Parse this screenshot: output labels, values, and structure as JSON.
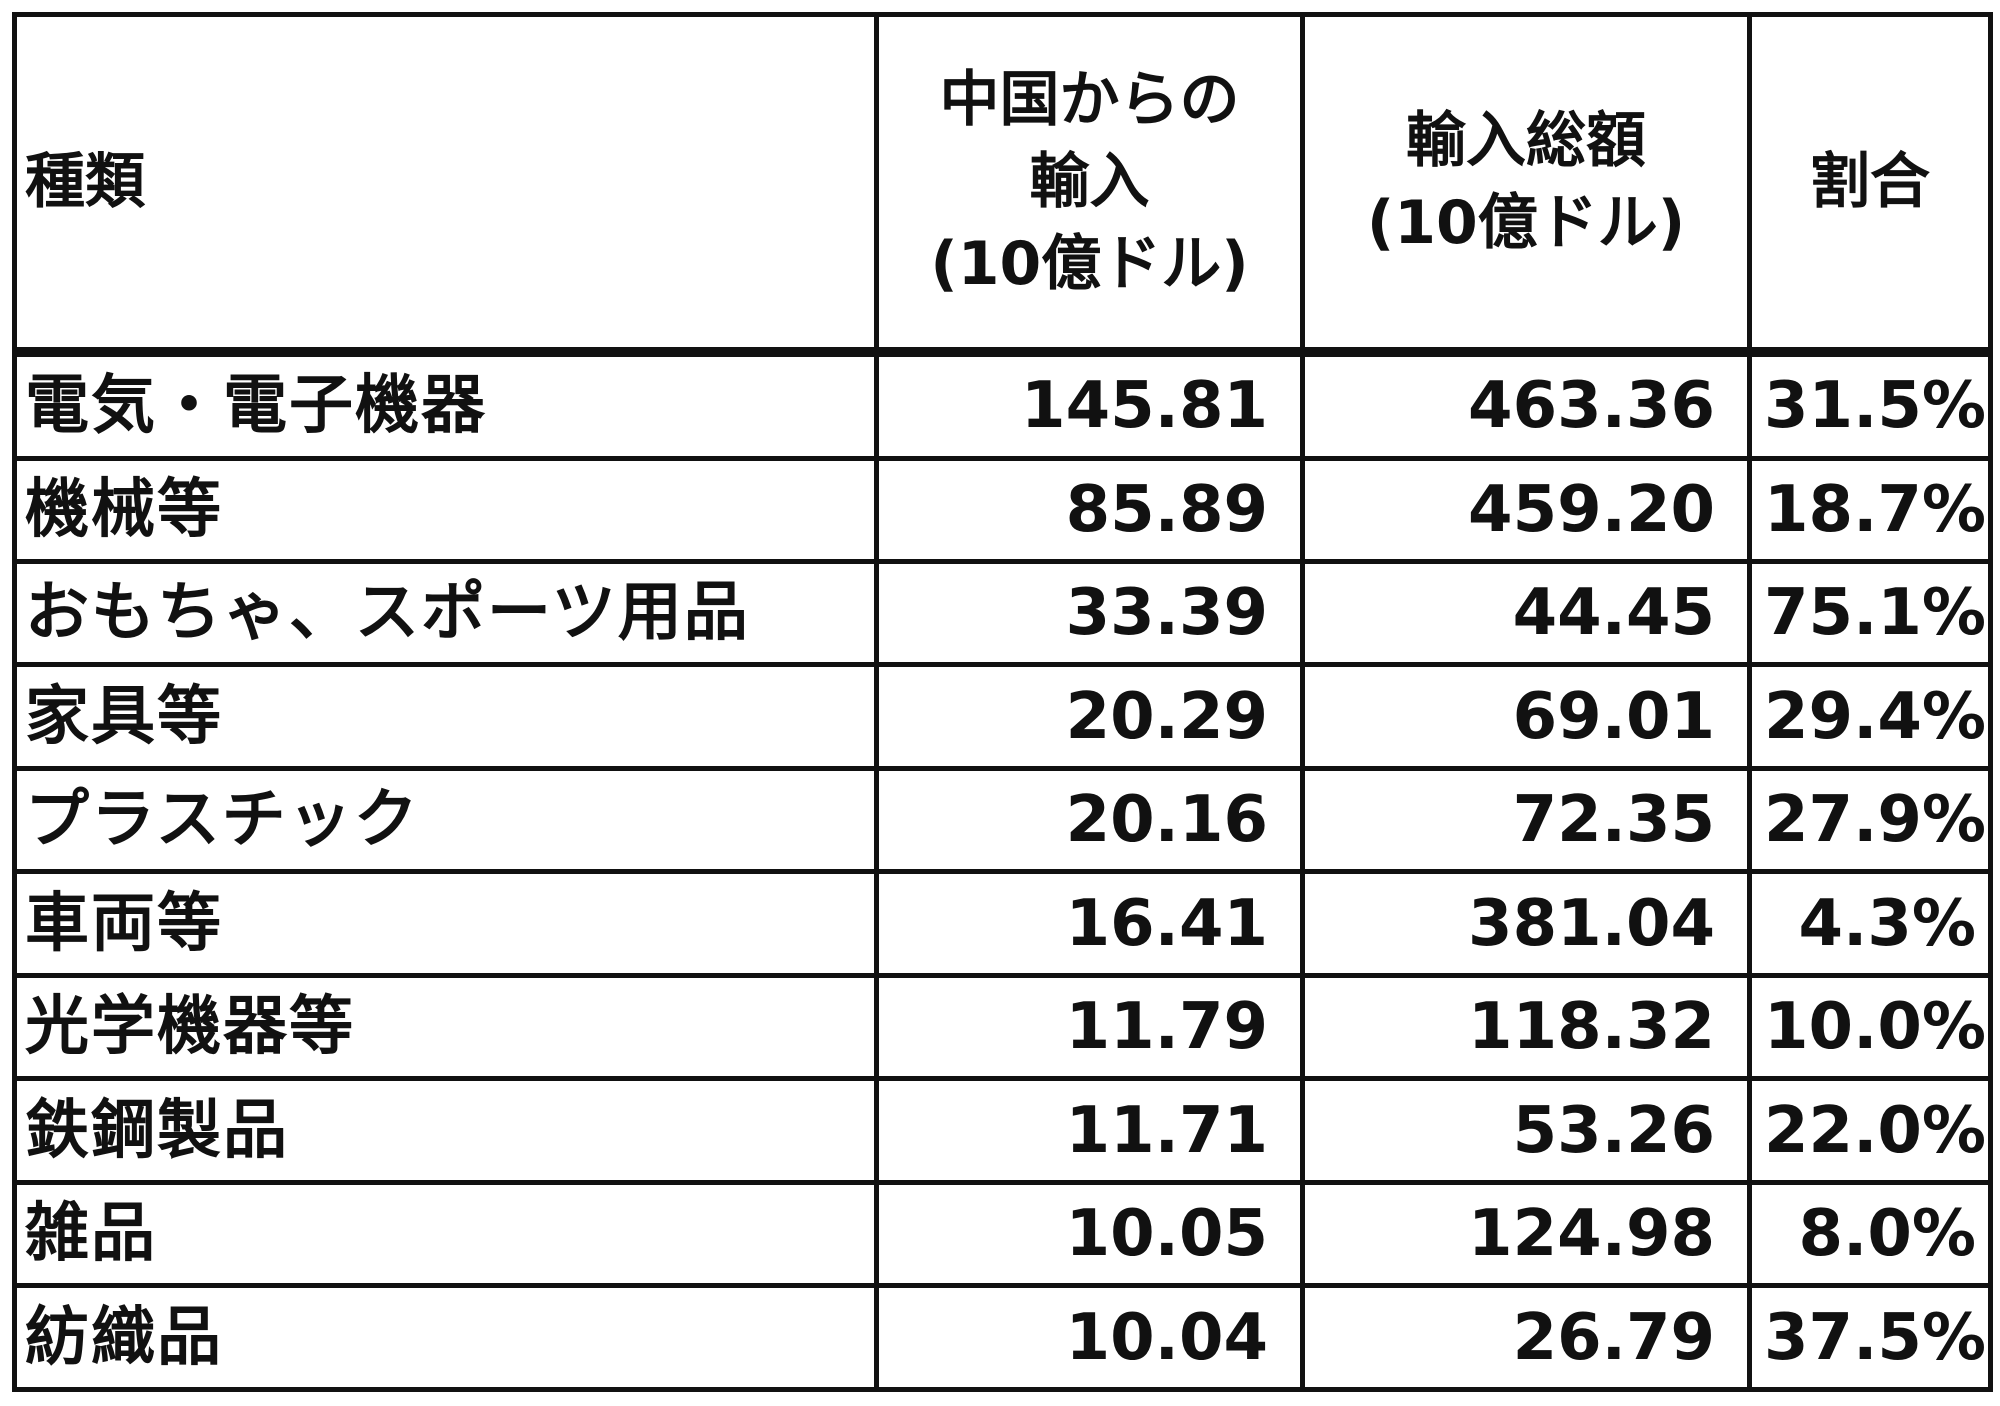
{
  "table": {
    "headers": {
      "type": "種類",
      "china_imports": [
        "中国からの",
        "輸入",
        "(10億ドル)"
      ],
      "total_imports": [
        "輸入総額",
        "(10億ドル)"
      ],
      "share": "割合"
    },
    "rows": [
      {
        "type": "電気・電子機器",
        "china_imports": "145.81",
        "total_imports": "463.36",
        "share": "31.5%"
      },
      {
        "type": "機械等",
        "china_imports": "85.89",
        "total_imports": "459.20",
        "share": "18.7%"
      },
      {
        "type": "おもちゃ、スポーツ用品",
        "china_imports": "33.39",
        "total_imports": "44.45",
        "share": "75.1%"
      },
      {
        "type": "家具等",
        "china_imports": "20.29",
        "total_imports": "69.01",
        "share": "29.4%"
      },
      {
        "type": "プラスチック",
        "china_imports": "20.16",
        "total_imports": "72.35",
        "share": "27.9%"
      },
      {
        "type": "車両等",
        "china_imports": "16.41",
        "total_imports": "381.04",
        "share": "4.3%"
      },
      {
        "type": "光学機器等",
        "china_imports": "11.79",
        "total_imports": "118.32",
        "share": "10.0%"
      },
      {
        "type": "鉄鋼製品",
        "china_imports": "11.71",
        "total_imports": "53.26",
        "share": "22.0%"
      },
      {
        "type": "雑品",
        "china_imports": "10.05",
        "total_imports": "124.98",
        "share": "8.0%"
      },
      {
        "type": "紡織品",
        "china_imports": "10.04",
        "total_imports": "26.79",
        "share": "37.5%"
      }
    ]
  },
  "colors": {
    "border": "#111111",
    "text": "#111111",
    "background": "#ffffff"
  }
}
